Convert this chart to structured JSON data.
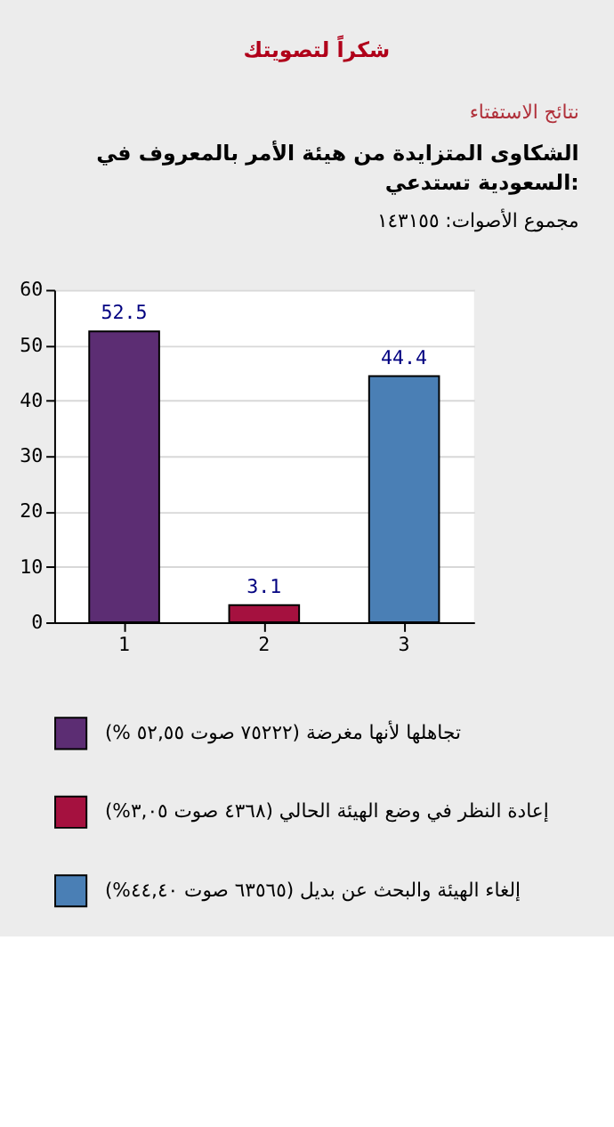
{
  "chart_data": {
    "type": "bar",
    "title": "شكراً لتصويتك",
    "subtitle": "نتائج الاستفتاء",
    "annotations": [
      "الشكاوى المتزايدة من هيئة الأمر بالمعروف في السعودية تستدعي:",
      "مجموع الأصوات: ١٤٣١٥٥"
    ],
    "categories": [
      "1",
      "2",
      "3"
    ],
    "series": [
      {
        "name": "تجاهلها لأنها مغرضة (٧٥٢٢٢ صوت ٥٢,٥٥ %)",
        "color": "#5c2d73",
        "values": [
          52.5,
          null,
          null
        ]
      },
      {
        "name": "إعادة النظر في وضع الهيئة الحالي (٤٣٦٨ صوت ٣,٠٥%)",
        "color": "#a5113f",
        "values": [
          null,
          3.1,
          null
        ]
      },
      {
        "name": "إلغاء الهيئة والبحث عن بديل (٦٣٥٦٥ صوت ٤٤,٤٠%)",
        "color": "#4a7fb5",
        "values": [
          null,
          null,
          44.4
        ]
      }
    ],
    "ylim": [
      0,
      60
    ],
    "yticks": [
      0,
      10,
      20,
      30,
      40,
      50,
      60
    ],
    "grid": "y",
    "data_labels": true,
    "legend": "bottom"
  }
}
